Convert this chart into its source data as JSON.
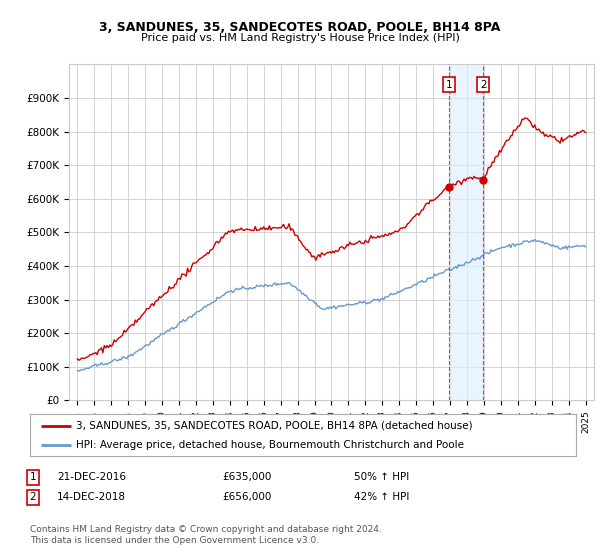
{
  "title": "3, SANDUNES, 35, SANDECOTES ROAD, POOLE, BH14 8PA",
  "subtitle": "Price paid vs. HM Land Registry's House Price Index (HPI)",
  "legend_line1": "3, SANDUNES, 35, SANDECOTES ROAD, POOLE, BH14 8PA (detached house)",
  "legend_line2": "HPI: Average price, detached house, Bournemouth Christchurch and Poole",
  "footer": "Contains HM Land Registry data © Crown copyright and database right 2024.\nThis data is licensed under the Open Government Licence v3.0.",
  "transaction1_label": "1",
  "transaction1_date": "21-DEC-2016",
  "transaction1_price": "£635,000",
  "transaction1_hpi": "50% ↑ HPI",
  "transaction2_label": "2",
  "transaction2_date": "14-DEC-2018",
  "transaction2_price": "£656,000",
  "transaction2_hpi": "42% ↑ HPI",
  "sale1_year": 2016.96,
  "sale1_price": 635000,
  "sale2_year": 2018.96,
  "sale2_price": 656000,
  "red_color": "#cc0000",
  "blue_color": "#6699cc",
  "background_color": "#ffffff",
  "grid_color": "#cccccc",
  "marker_box_color": "#cc0000",
  "shade_color": "#ddeeff",
  "ylim": [
    0,
    1000000
  ],
  "yticks": [
    0,
    100000,
    200000,
    300000,
    400000,
    500000,
    600000,
    700000,
    800000,
    900000
  ],
  "ytick_labels": [
    "£0",
    "£100K",
    "£200K",
    "£300K",
    "£400K",
    "£500K",
    "£600K",
    "£700K",
    "£800K",
    "£900K"
  ],
  "xlim_start": 1994.5,
  "xlim_end": 2025.5
}
